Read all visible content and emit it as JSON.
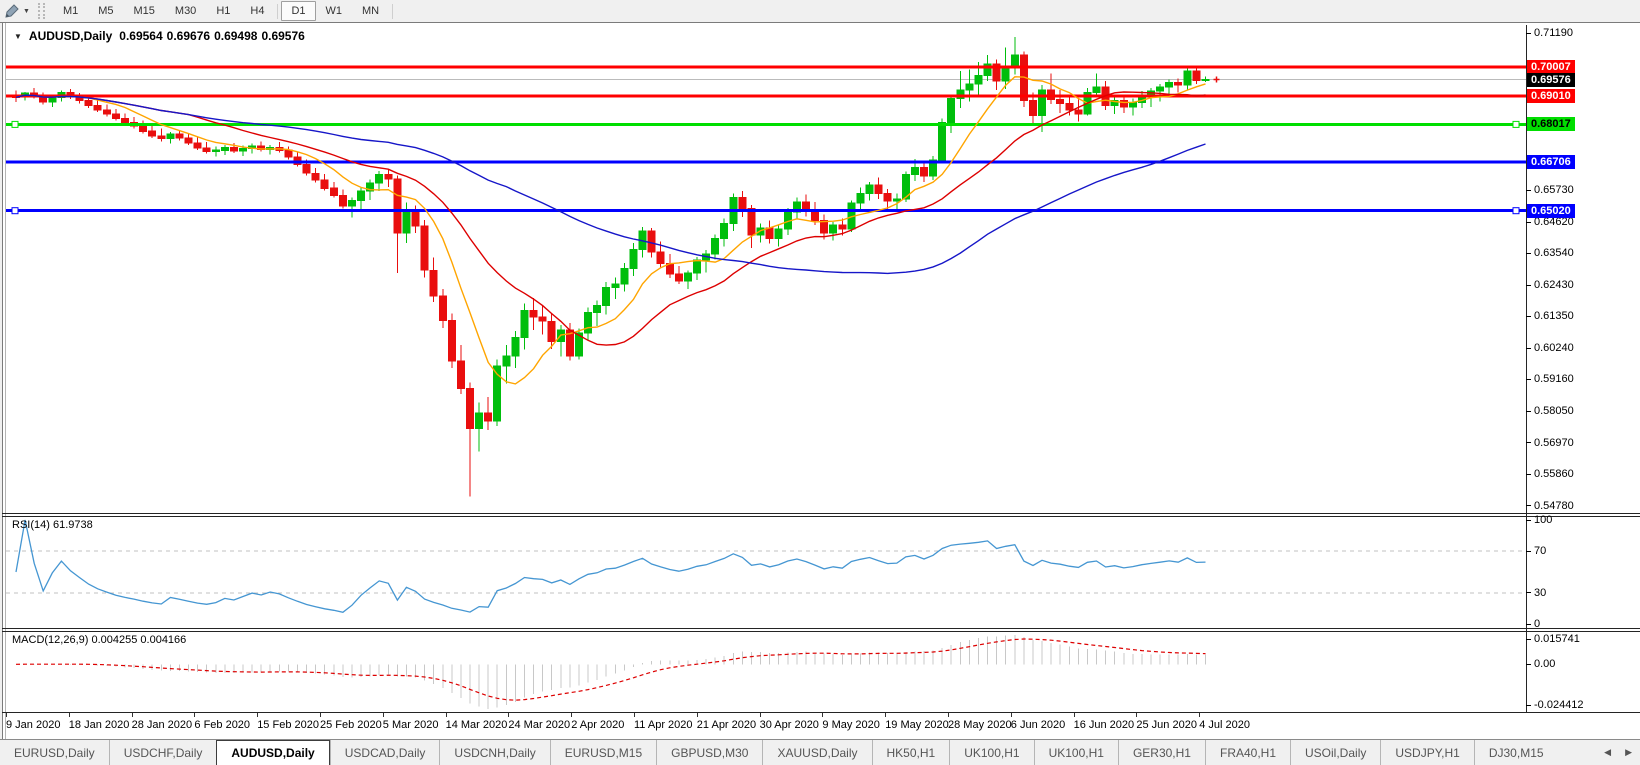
{
  "toolbar": {
    "tool_icon": "drawing-tools",
    "dropdown_glyph": "▼",
    "timeframes": [
      "M1",
      "M5",
      "M15",
      "M30",
      "H1",
      "H4",
      "D1",
      "W1",
      "MN"
    ],
    "active_timeframe": "D1"
  },
  "chart_header": {
    "collapse_glyph": "▼",
    "symbol_title": "AUDUSD,Daily",
    "open": "0.69564",
    "high": "0.69676",
    "low": "0.69498",
    "close": "0.69576"
  },
  "price_scale": {
    "ticks": [
      "0.71190",
      "0.65730",
      "0.64620",
      "0.63540",
      "0.62430",
      "0.61350",
      "0.60240",
      "0.59160",
      "0.58050",
      "0.56970",
      "0.55860",
      "0.54780"
    ],
    "level_labels": [
      {
        "text": "0.70007",
        "price": 0.70007,
        "bg": "#FF0000",
        "fg": "#FFFFFF"
      },
      {
        "text": "0.69576",
        "price": 0.69576,
        "bg": "#000000",
        "fg": "#FFFFFF"
      },
      {
        "text": "0.69010",
        "price": 0.6901,
        "bg": "#FF0000",
        "fg": "#FFFFFF"
      },
      {
        "text": "0.68017",
        "price": 0.68017,
        "bg": "#00DE00",
        "fg": "#000000"
      },
      {
        "text": "0.66706",
        "price": 0.66706,
        "bg": "#0000FF",
        "fg": "#FFFFFF"
      },
      {
        "text": "0.65020",
        "price": 0.6502,
        "bg": "#0000FF",
        "fg": "#FFFFFF"
      }
    ]
  },
  "rsi_panel": {
    "label": "RSI(14) 61.9738",
    "ticks": [
      {
        "text": "100",
        "value": 100
      },
      {
        "text": "70",
        "value": 70
      },
      {
        "text": "30",
        "value": 30
      },
      {
        "text": "0",
        "value": 0
      }
    ]
  },
  "macd_panel": {
    "label": "MACD(12,26,9) 0.004255 0.004166",
    "tick_max": "0.015741",
    "tick_zero": "0.00",
    "tick_min": "-0.024412"
  },
  "date_axis": [
    "9 Jan 2020",
    "18 Jan 2020",
    "28 Jan 2020",
    "6 Feb 2020",
    "15 Feb 2020",
    "25 Feb 2020",
    "5 Mar 2020",
    "14 Mar 2020",
    "24 Mar 2020",
    "2 Apr 2020",
    "11 Apr 2020",
    "21 Apr 2020",
    "30 Apr 2020",
    "9 May 2020",
    "19 May 2020",
    "28 May 2020",
    "6 Jun 2020",
    "16 Jun 2020",
    "25 Jun 2020",
    "4 Jul 2020"
  ],
  "tab_bar": {
    "tabs": [
      "EURUSD,Daily",
      "USDCHF,Daily",
      "AUDUSD,Daily",
      "USDCAD,Daily",
      "USDCNH,Daily",
      "EURUSD,M15",
      "GBPUSD,M30",
      "XAUUSD,Daily",
      "HK50,H1",
      "UK100,H1",
      "UK100,H1",
      "GER30,H1",
      "FRA40,H1",
      "USOil,Daily",
      "USDJPY,H1",
      "DJ30,M15"
    ],
    "active_index": 2,
    "left_arrow": "◀",
    "right_arrow": "▶"
  },
  "chart_data": {
    "type": "candlestick",
    "symbol": "AUDUSD",
    "timeframe": "Daily",
    "title": "AUDUSD,Daily",
    "price_range": {
      "top": 0.7147,
      "bottom": 0.5452
    },
    "current_price": {
      "value": 0.69576,
      "line_color": "#bbbbbb"
    },
    "levels": [
      {
        "price": 0.70007,
        "color": "#FF0000"
      },
      {
        "price": 0.6901,
        "color": "#FF0000"
      },
      {
        "price": 0.68017,
        "color": "#00DE00",
        "handles": true
      },
      {
        "price": 0.66706,
        "color": "#0000FF"
      },
      {
        "price": 0.6502,
        "color": "#0000FF",
        "handles": true
      }
    ],
    "colors": {
      "bull": "#00BE0C",
      "bear": "#E90E0E",
      "ma_fast": "#FFA500",
      "ma_mid": "#DD0000",
      "ma_slow": "#1616C8",
      "rsi": "#4596D2",
      "rsi_levels": "#c0c0c0",
      "macd_hist": "#c8c8c8",
      "macd_signal": "#DD0000"
    },
    "moving_averages": [
      {
        "period": 8,
        "color_key": "ma_fast"
      },
      {
        "period": 20,
        "color_key": "ma_mid"
      },
      {
        "period": 55,
        "color_key": "ma_slow"
      }
    ],
    "rsi": {
      "period": 14,
      "current": 61.9738,
      "levels": [
        70,
        30
      ]
    },
    "macd": {
      "fast": 12,
      "slow": 26,
      "signal": 9,
      "current_macd": 0.004255,
      "current_signal": 0.004166
    },
    "ohlc": [
      [
        0.6904,
        0.692,
        0.688,
        0.6896
      ],
      [
        0.6896,
        0.6915,
        0.6885,
        0.691
      ],
      [
        0.691,
        0.6928,
        0.6892,
        0.69
      ],
      [
        0.69,
        0.6912,
        0.687,
        0.688
      ],
      [
        0.688,
        0.6903,
        0.6862,
        0.6895
      ],
      [
        0.6895,
        0.692,
        0.6882,
        0.6912
      ],
      [
        0.6912,
        0.6925,
        0.689,
        0.6898
      ],
      [
        0.6898,
        0.691,
        0.6875,
        0.6885
      ],
      [
        0.6885,
        0.69,
        0.6858,
        0.6868
      ],
      [
        0.6868,
        0.6885,
        0.6845,
        0.6852
      ],
      [
        0.6852,
        0.687,
        0.683,
        0.6838
      ],
      [
        0.6838,
        0.6855,
        0.6815,
        0.6822
      ],
      [
        0.6822,
        0.684,
        0.68,
        0.6808
      ],
      [
        0.6808,
        0.6828,
        0.6788,
        0.6796
      ],
      [
        0.6796,
        0.6815,
        0.677,
        0.6778
      ],
      [
        0.6778,
        0.68,
        0.6755,
        0.6762
      ],
      [
        0.6762,
        0.6788,
        0.6742,
        0.6752
      ],
      [
        0.6752,
        0.6775,
        0.6735,
        0.6768
      ],
      [
        0.6768,
        0.6782,
        0.6745,
        0.6755
      ],
      [
        0.6755,
        0.6772,
        0.673,
        0.6738
      ],
      [
        0.6738,
        0.6756,
        0.6712,
        0.672
      ],
      [
        0.672,
        0.674,
        0.67,
        0.6708
      ],
      [
        0.6708,
        0.6725,
        0.669,
        0.6712
      ],
      [
        0.6712,
        0.673,
        0.6695,
        0.6722
      ],
      [
        0.6722,
        0.6738,
        0.6702,
        0.671
      ],
      [
        0.671,
        0.6728,
        0.6692,
        0.6718
      ],
      [
        0.6718,
        0.6735,
        0.67,
        0.6726
      ],
      [
        0.6726,
        0.6742,
        0.6708,
        0.6715
      ],
      [
        0.6715,
        0.673,
        0.6698,
        0.6722
      ],
      [
        0.6722,
        0.674,
        0.6705,
        0.6712
      ],
      [
        0.6712,
        0.6725,
        0.668,
        0.6688
      ],
      [
        0.6688,
        0.6705,
        0.6655,
        0.6662
      ],
      [
        0.6662,
        0.668,
        0.6625,
        0.6632
      ],
      [
        0.6632,
        0.665,
        0.66,
        0.6608
      ],
      [
        0.6608,
        0.663,
        0.6572,
        0.658
      ],
      [
        0.658,
        0.6602,
        0.6548,
        0.6555
      ],
      [
        0.6555,
        0.6575,
        0.651,
        0.6518
      ],
      [
        0.6518,
        0.6548,
        0.6478,
        0.6538
      ],
      [
        0.6538,
        0.658,
        0.6505,
        0.657
      ],
      [
        0.657,
        0.661,
        0.654,
        0.6598
      ],
      [
        0.6598,
        0.664,
        0.657,
        0.6628
      ],
      [
        0.6628,
        0.6645,
        0.6585,
        0.6612
      ],
      [
        0.6612,
        0.6625,
        0.6285,
        0.6425
      ],
      [
        0.6425,
        0.653,
        0.639,
        0.6505
      ],
      [
        0.6505,
        0.652,
        0.6425,
        0.6448
      ],
      [
        0.6448,
        0.647,
        0.627,
        0.6295
      ],
      [
        0.6295,
        0.634,
        0.6185,
        0.6205
      ],
      [
        0.6205,
        0.623,
        0.6095,
        0.612
      ],
      [
        0.612,
        0.6145,
        0.5955,
        0.598
      ],
      [
        0.598,
        0.6035,
        0.5865,
        0.5885
      ],
      [
        0.5885,
        0.5905,
        0.551,
        0.5745
      ],
      [
        0.5745,
        0.5835,
        0.5665,
        0.58
      ],
      [
        0.58,
        0.5855,
        0.574,
        0.5772
      ],
      [
        0.5772,
        0.5985,
        0.5755,
        0.5962
      ],
      [
        0.5962,
        0.6035,
        0.5902,
        0.5998
      ],
      [
        0.5998,
        0.6085,
        0.5955,
        0.6062
      ],
      [
        0.6062,
        0.618,
        0.602,
        0.6155
      ],
      [
        0.6155,
        0.6198,
        0.6088,
        0.6132
      ],
      [
        0.6132,
        0.6175,
        0.6072,
        0.6118
      ],
      [
        0.6118,
        0.6145,
        0.6022,
        0.6048
      ],
      [
        0.6048,
        0.6105,
        0.5995,
        0.6088
      ],
      [
        0.6088,
        0.6112,
        0.5982,
        0.5998
      ],
      [
        0.5998,
        0.6092,
        0.5985,
        0.6078
      ],
      [
        0.6078,
        0.6165,
        0.6052,
        0.6148
      ],
      [
        0.6148,
        0.619,
        0.6102,
        0.6172
      ],
      [
        0.6172,
        0.6255,
        0.6142,
        0.6235
      ],
      [
        0.6235,
        0.627,
        0.6195,
        0.6248
      ],
      [
        0.6248,
        0.632,
        0.6222,
        0.6302
      ],
      [
        0.6302,
        0.639,
        0.6275,
        0.6368
      ],
      [
        0.6368,
        0.6445,
        0.634,
        0.6432
      ],
      [
        0.6432,
        0.6442,
        0.634,
        0.6358
      ],
      [
        0.6358,
        0.6395,
        0.6302,
        0.6318
      ],
      [
        0.6318,
        0.6352,
        0.6268,
        0.6282
      ],
      [
        0.6282,
        0.631,
        0.6248,
        0.6258
      ],
      [
        0.6258,
        0.6295,
        0.623,
        0.6285
      ],
      [
        0.6285,
        0.6342,
        0.6262,
        0.633
      ],
      [
        0.633,
        0.6365,
        0.6288,
        0.6352
      ],
      [
        0.6352,
        0.642,
        0.6332,
        0.6405
      ],
      [
        0.6405,
        0.6475,
        0.6378,
        0.6458
      ],
      [
        0.6458,
        0.6562,
        0.6432,
        0.6548
      ],
      [
        0.6548,
        0.657,
        0.648,
        0.651
      ],
      [
        0.651,
        0.6522,
        0.6372,
        0.6418
      ],
      [
        0.6418,
        0.6458,
        0.6392,
        0.6442
      ],
      [
        0.6442,
        0.6468,
        0.6388,
        0.6405
      ],
      [
        0.6405,
        0.6452,
        0.6378,
        0.6438
      ],
      [
        0.6438,
        0.6512,
        0.6418,
        0.6498
      ],
      [
        0.6498,
        0.6548,
        0.6472,
        0.6532
      ],
      [
        0.6532,
        0.6558,
        0.6482,
        0.6505
      ],
      [
        0.6505,
        0.6532,
        0.6452,
        0.6468
      ],
      [
        0.6468,
        0.6488,
        0.6402,
        0.6425
      ],
      [
        0.6425,
        0.6462,
        0.6398,
        0.6452
      ],
      [
        0.6452,
        0.6475,
        0.6415,
        0.6438
      ],
      [
        0.6438,
        0.6538,
        0.6428,
        0.6528
      ],
      [
        0.6528,
        0.6582,
        0.6502,
        0.6562
      ],
      [
        0.6562,
        0.6602,
        0.6538,
        0.6592
      ],
      [
        0.6592,
        0.6618,
        0.6542,
        0.6562
      ],
      [
        0.6562,
        0.6578,
        0.6508,
        0.6535
      ],
      [
        0.6535,
        0.6562,
        0.6502,
        0.6542
      ],
      [
        0.6542,
        0.6638,
        0.6532,
        0.6628
      ],
      [
        0.6628,
        0.6682,
        0.6605,
        0.6652
      ],
      [
        0.6652,
        0.6668,
        0.6602,
        0.6622
      ],
      [
        0.6622,
        0.6692,
        0.6608,
        0.6678
      ],
      [
        0.6678,
        0.6822,
        0.667,
        0.6808
      ],
      [
        0.6808,
        0.6902,
        0.6772,
        0.6892
      ],
      [
        0.6892,
        0.6988,
        0.6858,
        0.6922
      ],
      [
        0.6922,
        0.6992,
        0.6882,
        0.6942
      ],
      [
        0.6942,
        0.7018,
        0.6902,
        0.6972
      ],
      [
        0.6972,
        0.7042,
        0.6952,
        0.7012
      ],
      [
        0.7012,
        0.7028,
        0.6922,
        0.6952
      ],
      [
        0.6952,
        0.7068,
        0.6925,
        0.7002
      ],
      [
        0.7002,
        0.7105,
        0.6975,
        0.7042
      ],
      [
        0.7042,
        0.7055,
        0.6862,
        0.6885
      ],
      [
        0.6885,
        0.6912,
        0.68,
        0.6832
      ],
      [
        0.6832,
        0.6938,
        0.6776,
        0.6922
      ],
      [
        0.6922,
        0.6978,
        0.6872,
        0.6888
      ],
      [
        0.6888,
        0.6922,
        0.6842,
        0.6875
      ],
      [
        0.6875,
        0.6898,
        0.6832,
        0.6852
      ],
      [
        0.6852,
        0.6888,
        0.6812,
        0.6838
      ],
      [
        0.6838,
        0.6928,
        0.6832,
        0.6912
      ],
      [
        0.6912,
        0.6978,
        0.6895,
        0.6932
      ],
      [
        0.6932,
        0.6952,
        0.6852,
        0.6868
      ],
      [
        0.6868,
        0.6898,
        0.6838,
        0.6885
      ],
      [
        0.6885,
        0.6902,
        0.6842,
        0.6862
      ],
      [
        0.6862,
        0.6892,
        0.6832,
        0.6878
      ],
      [
        0.6878,
        0.6918,
        0.6858,
        0.6902
      ],
      [
        0.6902,
        0.6928,
        0.6862,
        0.6918
      ],
      [
        0.6918,
        0.6942,
        0.6882,
        0.6932
      ],
      [
        0.6932,
        0.6958,
        0.6905,
        0.6948
      ],
      [
        0.6948,
        0.6962,
        0.6912,
        0.6938
      ],
      [
        0.6938,
        0.7,
        0.6922,
        0.6988
      ],
      [
        0.6988,
        0.7002,
        0.6942,
        0.6955
      ],
      [
        0.69564,
        0.69676,
        0.69498,
        0.69576
      ]
    ]
  }
}
